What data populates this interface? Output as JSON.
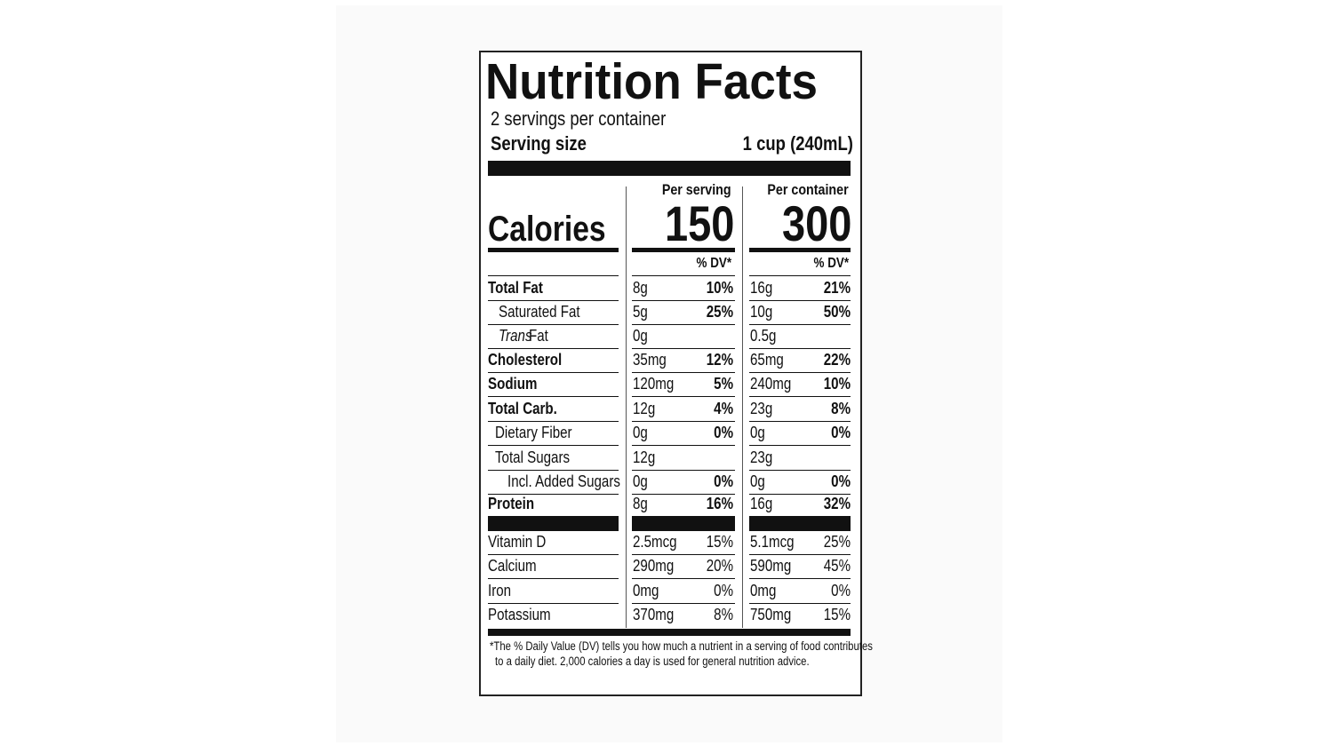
{
  "title": "Nutrition Facts",
  "servings": "2 servings per container",
  "serving_size": {
    "label": "Serving size",
    "value": "1 cup (240mL)"
  },
  "columns": [
    "Per serving",
    "Per container"
  ],
  "calories": {
    "label": "Calories",
    "values": [
      "150",
      "300"
    ]
  },
  "dv_header": [
    "% DV*",
    "% DV*"
  ],
  "nutrients": [
    {
      "name": "Total Fat",
      "per_serving": {
        "amount": "8g",
        "dv": "10%"
      },
      "per_container": {
        "amount": "16g",
        "dv": "21%"
      }
    },
    {
      "name": "Saturated Fat",
      "per_serving": {
        "amount": "5g",
        "dv": "25%"
      },
      "per_container": {
        "amount": "10g",
        "dv": "50%"
      }
    },
    {
      "name_italic": "Trans",
      "name": "Fat",
      "per_serving": {
        "amount": "0g"
      },
      "per_container": {
        "amount": "0.5g"
      }
    },
    {
      "name": "Cholesterol",
      "per_serving": {
        "amount": "35mg",
        "dv": "12%"
      },
      "per_container": {
        "amount": "65mg",
        "dv": "22%"
      }
    },
    {
      "name": "Sodium",
      "per_serving": {
        "amount": "120mg",
        "dv": "5%"
      },
      "per_container": {
        "amount": "240mg",
        "dv": "10%"
      }
    },
    {
      "name": "Total Carb.",
      "per_serving": {
        "amount": "12g",
        "dv": "4%"
      },
      "per_container": {
        "amount": "23g",
        "dv": "8%"
      }
    },
    {
      "name": "Dietary Fiber",
      "per_serving": {
        "amount": "0g",
        "dv": "0%"
      },
      "per_container": {
        "amount": "0g",
        "dv": "0%"
      }
    },
    {
      "name": "Total Sugars",
      "per_serving": {
        "amount": "12g"
      },
      "per_container": {
        "amount": "23g"
      }
    },
    {
      "name": "Incl. Added Sugars",
      "per_serving": {
        "amount": "0g",
        "dv": "0%"
      },
      "per_container": {
        "amount": "0g",
        "dv": "0%"
      }
    },
    {
      "name": "Protein",
      "per_serving": {
        "amount": "8g",
        "dv": "16%"
      },
      "per_container": {
        "amount": "16g",
        "dv": "32%"
      }
    }
  ],
  "vitamins": [
    {
      "name": "Vitamin D",
      "per_serving": {
        "amount": "2.5mcg",
        "dv": "15%"
      },
      "per_container": {
        "amount": "5.1mcg",
        "dv": "25%"
      }
    },
    {
      "name": "Calcium",
      "per_serving": {
        "amount": "290mg",
        "dv": "20%"
      },
      "per_container": {
        "amount": "590mg",
        "dv": "45%"
      }
    },
    {
      "name": "Iron",
      "per_serving": {
        "amount": "0mg",
        "dv": "0%"
      },
      "per_container": {
        "amount": "0mg",
        "dv": "0%"
      }
    },
    {
      "name": "Potassium",
      "per_serving": {
        "amount": "370mg",
        "dv": "8%"
      },
      "per_container": {
        "amount": "750mg",
        "dv": "15%"
      }
    }
  ],
  "footnote": [
    "*The % Daily Value (DV) tells you how much a nutrient in a serving of food contributes",
    "to a daily diet. 2,000 calories a day is used for general nutrition advice."
  ]
}
